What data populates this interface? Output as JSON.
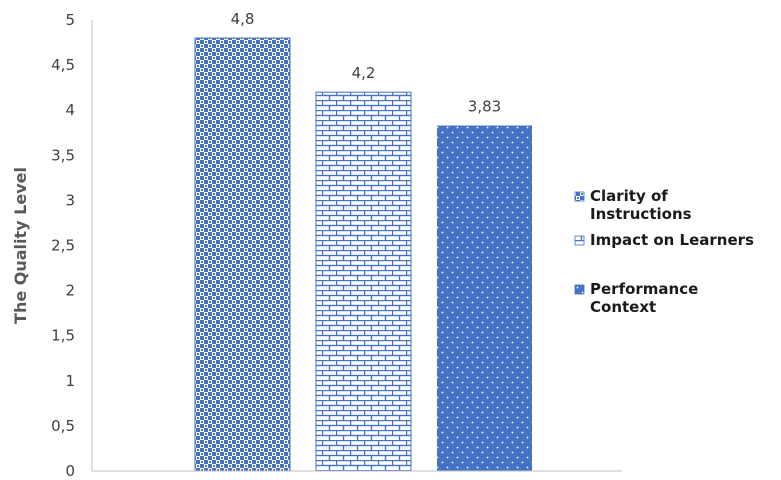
{
  "chart_data": {
    "type": "bar",
    "title": "",
    "xlabel": "",
    "ylabel": "The Quality Level",
    "ylim": [
      0,
      5
    ],
    "y_ticks": [
      "0",
      "0,5",
      "1",
      "1,5",
      "2",
      "2,5",
      "3",
      "3,5",
      "4",
      "4,5",
      "5"
    ],
    "grid": false,
    "legend_position": "right",
    "series": [
      {
        "name": "Clarity of Instructions",
        "name_lines": [
          "Clarity of",
          "Instructions"
        ],
        "value": 4.8,
        "label": "4,8",
        "pattern": "check",
        "color": "#4472c4"
      },
      {
        "name": "Impact on Learners",
        "name_lines": [
          "Impact on Learners"
        ],
        "value": 4.2,
        "label": "4,2",
        "pattern": "brick",
        "color": "#4472c4"
      },
      {
        "name": "Performance Context",
        "name_lines": [
          "Performance",
          "Context"
        ],
        "value": 3.83,
        "label": "3,83",
        "pattern": "dots",
        "color": "#4472c4"
      }
    ]
  }
}
